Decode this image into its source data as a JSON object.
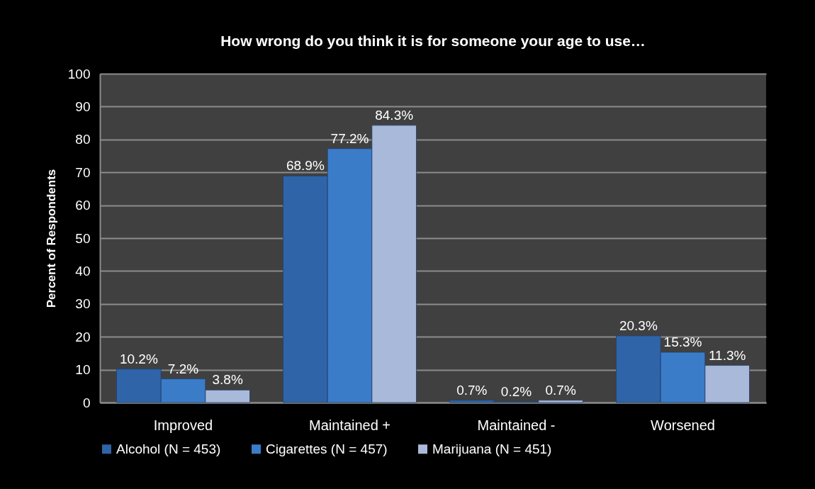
{
  "chart_data": {
    "type": "bar",
    "title": "How wrong do you think it is for someone your age to use…",
    "ylabel": "Percent of Respondents",
    "categories": [
      "Improved",
      "Maintained +",
      "Maintained -",
      "Worsened"
    ],
    "series": [
      {
        "name": "Alcohol (N = 453)",
        "color": "#2f64a8",
        "values": [
          10.2,
          68.9,
          0.7,
          20.3
        ],
        "value_labels": [
          "10.2%",
          "68.9%",
          "0.7%",
          "20.3%"
        ]
      },
      {
        "name": "Cigarettes (N = 457)",
        "color": "#3b7cc9",
        "values": [
          7.2,
          77.2,
          0.2,
          15.3
        ],
        "value_labels": [
          "7.2%",
          "77.2%",
          "0.2%",
          "15.3%"
        ]
      },
      {
        "name": "Marijuana (N = 451)",
        "color": "#a9b9da",
        "values": [
          3.8,
          84.3,
          0.7,
          11.3
        ],
        "value_labels": [
          "3.8%",
          "84.3%",
          "0.7%",
          "11.3%"
        ]
      }
    ],
    "ylim": [
      0,
      100
    ],
    "yticks": [
      0,
      10,
      20,
      30,
      40,
      50,
      60,
      70,
      80,
      90,
      100
    ],
    "grid": "y",
    "legend": "bottom"
  }
}
